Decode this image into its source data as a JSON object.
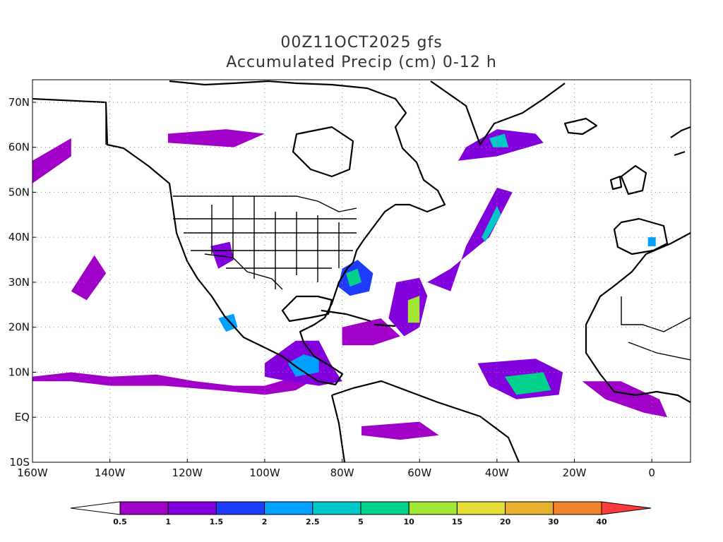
{
  "title": {
    "line1": "00Z11OCT2025 gfs",
    "line2": "Accumulated Precip (cm) 0-12 h"
  },
  "map": {
    "lon_range": [
      -160,
      10
    ],
    "lat_range": [
      -10,
      75
    ],
    "grid": "dotted",
    "x_ticks": [
      {
        "lon": -160,
        "label": "160W"
      },
      {
        "lon": -140,
        "label": "140W"
      },
      {
        "lon": -120,
        "label": "120W"
      },
      {
        "lon": -100,
        "label": "100W"
      },
      {
        "lon": -80,
        "label": "80W"
      },
      {
        "lon": -60,
        "label": "60W"
      },
      {
        "lon": -40,
        "label": "40W"
      },
      {
        "lon": -20,
        "label": "20W"
      },
      {
        "lon": 0,
        "label": "0"
      }
    ],
    "y_ticks": [
      {
        "lat": -10,
        "label": "10S"
      },
      {
        "lat": 0,
        "label": "EQ"
      },
      {
        "lat": 10,
        "label": "10N"
      },
      {
        "lat": 20,
        "label": "20N"
      },
      {
        "lat": 30,
        "label": "30N"
      },
      {
        "lat": 40,
        "label": "40N"
      },
      {
        "lat": 50,
        "label": "50N"
      },
      {
        "lat": 60,
        "label": "60N"
      },
      {
        "lat": 70,
        "label": "70N"
      }
    ]
  },
  "colorbar": {
    "levels": [
      "0.5",
      "1",
      "1.5",
      "2",
      "2.5",
      "5",
      "10",
      "15",
      "20",
      "30",
      "40"
    ],
    "colors": [
      "#ffffff",
      "#a000c8",
      "#8200dc",
      "#1e3cff",
      "#00a0ff",
      "#00c8c8",
      "#00d28c",
      "#a0e632",
      "#e6dc32",
      "#e6af2d",
      "#f08228",
      "#fa3c3c"
    ]
  },
  "precip_areas": [
    {
      "name": "pacific-itcz",
      "poly": [
        [
          -160,
          9
        ],
        [
          -150,
          10
        ],
        [
          -140,
          9
        ],
        [
          -128,
          9.5
        ],
        [
          -118,
          8
        ],
        [
          -108,
          7
        ],
        [
          -100,
          7
        ],
        [
          -92,
          9
        ],
        [
          -88,
          12
        ],
        [
          -86,
          9
        ],
        [
          -92,
          6
        ],
        [
          -100,
          5
        ],
        [
          -112,
          6
        ],
        [
          -126,
          7
        ],
        [
          -140,
          7
        ],
        [
          -150,
          8
        ],
        [
          -160,
          8
        ]
      ],
      "level": 1
    },
    {
      "name": "central-america",
      "poly": [
        [
          -100,
          12
        ],
        [
          -92,
          17
        ],
        [
          -86,
          17
        ],
        [
          -83,
          12
        ],
        [
          -80,
          8
        ],
        [
          -86,
          7
        ],
        [
          -94,
          8
        ],
        [
          -100,
          9
        ]
      ],
      "level": 2
    },
    {
      "name": "central-america-core",
      "poly": [
        [
          -94,
          12
        ],
        [
          -90,
          14
        ],
        [
          -86,
          13
        ],
        [
          -86,
          10
        ],
        [
          -92,
          9
        ]
      ],
      "level": 4
    },
    {
      "name": "gulf-stream-us",
      "poly": [
        [
          -80,
          33
        ],
        [
          -76,
          35
        ],
        [
          -72,
          32
        ],
        [
          -73,
          28
        ],
        [
          -78,
          27
        ],
        [
          -81,
          29
        ]
      ],
      "level": 3
    },
    {
      "name": "gulf-stream-core",
      "poly": [
        [
          -79,
          32
        ],
        [
          -76,
          33
        ],
        [
          -75,
          30
        ],
        [
          -78,
          29
        ]
      ],
      "level": 6
    },
    {
      "name": "atlantic-band",
      "poly": [
        [
          -48,
          38
        ],
        [
          -40,
          51
        ],
        [
          -36,
          50
        ],
        [
          -42,
          40
        ],
        [
          -52,
          33
        ],
        [
          -58,
          30
        ],
        [
          -52,
          28
        ]
      ],
      "level": 2
    },
    {
      "name": "atlantic-band-core",
      "poly": [
        [
          -44,
          40
        ],
        [
          -40,
          47
        ],
        [
          -39,
          45
        ],
        [
          -43,
          39
        ]
      ],
      "level": 5
    },
    {
      "name": "subtropical-atlantic",
      "poly": [
        [
          -66,
          30
        ],
        [
          -60,
          31
        ],
        [
          -58,
          27
        ],
        [
          -60,
          20
        ],
        [
          -64,
          18
        ],
        [
          -68,
          22
        ]
      ],
      "level": 2
    },
    {
      "name": "subtropical-core",
      "poly": [
        [
          -63,
          26
        ],
        [
          -60,
          27
        ],
        [
          -60,
          21
        ],
        [
          -63,
          21
        ]
      ],
      "level": 7
    },
    {
      "name": "east-atlantic",
      "poly": [
        [
          -45,
          12
        ],
        [
          -30,
          13
        ],
        [
          -23,
          10
        ],
        [
          -24,
          5
        ],
        [
          -35,
          4
        ],
        [
          -42,
          7
        ]
      ],
      "level": 2
    },
    {
      "name": "east-atlantic-core",
      "poly": [
        [
          -38,
          9
        ],
        [
          -28,
          10
        ],
        [
          -26,
          6
        ],
        [
          -35,
          5
        ]
      ],
      "level": 6
    },
    {
      "name": "greenland-low",
      "poly": [
        [
          -48,
          60
        ],
        [
          -40,
          64
        ],
        [
          -30,
          63
        ],
        [
          -28,
          61
        ],
        [
          -40,
          58
        ],
        [
          -50,
          57
        ]
      ],
      "level": 2
    },
    {
      "name": "greenland-core",
      "poly": [
        [
          -42,
          62
        ],
        [
          -38,
          63
        ],
        [
          -37,
          60
        ],
        [
          -41,
          60
        ]
      ],
      "level": 5
    },
    {
      "name": "hudson-band",
      "poly": [
        [
          -125,
          63
        ],
        [
          -110,
          64
        ],
        [
          -100,
          63
        ],
        [
          -108,
          60
        ],
        [
          -125,
          61
        ]
      ],
      "level": 1
    },
    {
      "name": "alaska-gulf",
      "poly": [
        [
          -160,
          57
        ],
        [
          -150,
          62
        ],
        [
          -150,
          58
        ],
        [
          -160,
          52
        ]
      ],
      "level": 1
    },
    {
      "name": "mid-pacific",
      "poly": [
        [
          -150,
          28
        ],
        [
          -144,
          36
        ],
        [
          -141,
          32
        ],
        [
          -146,
          26
        ]
      ],
      "level": 1
    },
    {
      "name": "mexico-west",
      "poly": [
        [
          -112,
          22
        ],
        [
          -108,
          23
        ],
        [
          -107,
          20
        ],
        [
          -110,
          19
        ]
      ],
      "level": 4
    },
    {
      "name": "southwest-us",
      "poly": [
        [
          -114,
          38
        ],
        [
          -109,
          39
        ],
        [
          -108,
          35
        ],
        [
          -112,
          33
        ]
      ],
      "level": 2
    },
    {
      "name": "west-africa",
      "poly": [
        [
          -18,
          8
        ],
        [
          -8,
          8
        ],
        [
          2,
          4
        ],
        [
          4,
          0
        ],
        [
          -2,
          1
        ],
        [
          -12,
          4
        ]
      ],
      "level": 1
    },
    {
      "name": "spain-cell",
      "poly": [
        [
          -1,
          40
        ],
        [
          1,
          40
        ],
        [
          1,
          38
        ],
        [
          -1,
          38
        ]
      ],
      "level": 4
    },
    {
      "name": "caribbean",
      "poly": [
        [
          -80,
          20
        ],
        [
          -70,
          22
        ],
        [
          -65,
          18
        ],
        [
          -72,
          16
        ],
        [
          -80,
          16
        ]
      ],
      "level": 1
    },
    {
      "name": "amazon",
      "poly": [
        [
          -75,
          -2
        ],
        [
          -60,
          -1
        ],
        [
          -55,
          -4
        ],
        [
          -65,
          -5
        ],
        [
          -75,
          -4
        ]
      ],
      "level": 1
    }
  ]
}
